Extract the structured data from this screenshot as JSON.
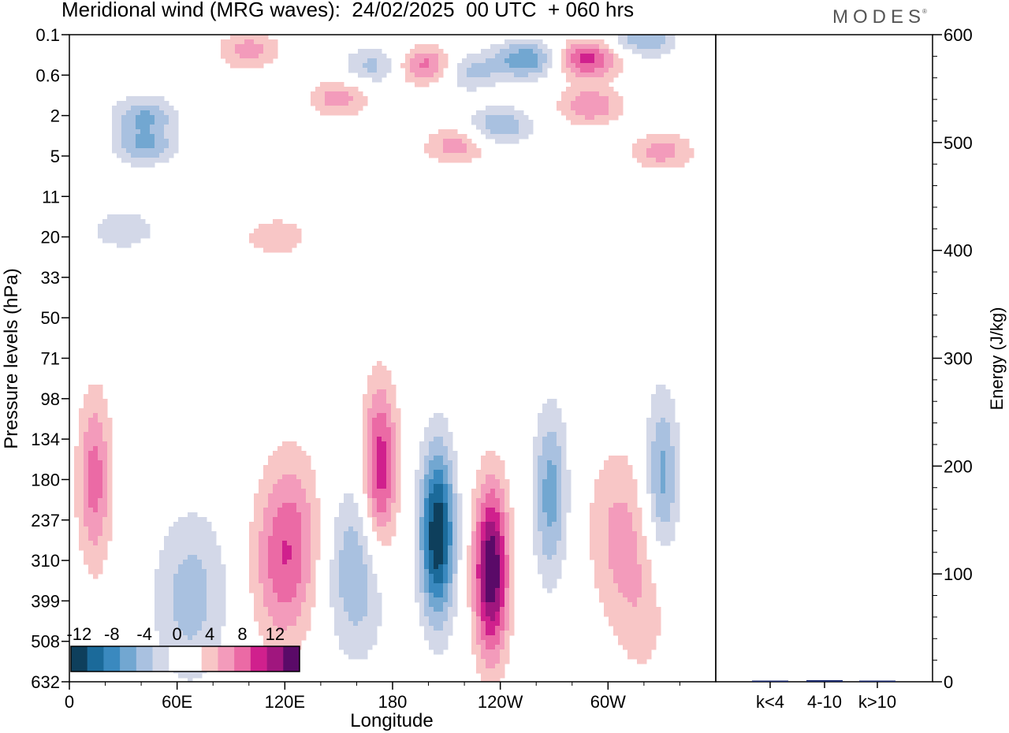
{
  "title": "Meridional wind (MRG waves):  24/02/2025  00 UTC  + 060 hrs",
  "brand": "MODES",
  "brand_mark": "®",
  "colors": {
    "neg": [
      "#0e3f5c",
      "#1b6a9a",
      "#3a89bf",
      "#72a7d1",
      "#a9c1e0",
      "#d3d8e8"
    ],
    "zero": "#ffffff",
    "pos": [
      "#f8c6c6",
      "#f39bbb",
      "#eb6aa5",
      "#d0208d",
      "#a0167e",
      "#5a0a68"
    ],
    "energy_bar": "#1c2b6e"
  },
  "chart_data": [
    {
      "type": "heatmap",
      "title": "Meridional wind (MRG waves):  24/02/2025  00 UTC  + 060 hrs",
      "xlabel": "Longitude",
      "ylabel": "Pressure levels (hPa)",
      "x_ticks": [
        "0",
        "60E",
        "120E",
        "180",
        "120W",
        "60W"
      ],
      "y_ticks": [
        "0.1",
        "0.6",
        "2",
        "5",
        "11",
        "20",
        "33",
        "50",
        "71",
        "98",
        "134",
        "180",
        "237",
        "310",
        "399",
        "508",
        "632"
      ],
      "colorbar": {
        "labels": [
          "-12",
          "-8",
          "-4",
          "0",
          "4",
          "8",
          "12"
        ],
        "levels": [
          -12,
          -10,
          -8,
          -6,
          -4,
          -2,
          0,
          2,
          4,
          6,
          8,
          10,
          12
        ]
      },
      "features": [
        {
          "lon": 205,
          "level": 260,
          "value": -14
        },
        {
          "lon": 235,
          "level": 330,
          "value": 14
        },
        {
          "lon": 173,
          "level": 170,
          "value": 10
        },
        {
          "lon": 268,
          "level": 200,
          "value": -7
        },
        {
          "lon": 330,
          "level": 180,
          "value": -7
        },
        {
          "lon": 14,
          "level": 180,
          "value": 7
        },
        {
          "lon": 255,
          "level": 0.3,
          "value": -8
        },
        {
          "lon": 288,
          "level": 0.3,
          "value": 9
        },
        {
          "lon": 200,
          "level": 0.4,
          "value": 8
        },
        {
          "lon": 42,
          "level": 4,
          "value": -6
        },
        {
          "lon": 42,
          "level": 2,
          "value": -6
        },
        {
          "lon": 150,
          "level": 1.2,
          "value": 5
        },
        {
          "lon": 240,
          "level": 2.5,
          "value": -6
        },
        {
          "lon": 290,
          "level": 1.5,
          "value": 6
        },
        {
          "lon": 170,
          "level": 0.4,
          "value": -5
        },
        {
          "lon": 220,
          "level": 0.5,
          "value": -6
        },
        {
          "lon": 320,
          "level": 0.12,
          "value": -6
        },
        {
          "lon": 100,
          "level": 0.2,
          "value": 5
        },
        {
          "lon": 30,
          "level": 18,
          "value": -4
        },
        {
          "lon": 115,
          "level": 20,
          "value": 4
        },
        {
          "lon": 118,
          "level": 330,
          "value": 5
        },
        {
          "lon": 125,
          "level": 250,
          "value": 4
        },
        {
          "lon": 160,
          "level": 330,
          "value": -6
        },
        {
          "lon": 60,
          "level": 400,
          "value": -3
        },
        {
          "lon": 75,
          "level": 380,
          "value": -3
        },
        {
          "lon": 305,
          "level": 250,
          "value": 4
        },
        {
          "lon": 320,
          "level": 400,
          "value": 3
        },
        {
          "lon": 215,
          "level": 4,
          "value": 5
        },
        {
          "lon": 330,
          "level": 4.5,
          "value": 5
        }
      ]
    },
    {
      "type": "bar",
      "ylabel": "Energy (J/kg)",
      "categories": [
        "k<4",
        "4-10",
        "k>10"
      ],
      "values": [
        0.5,
        1.5,
        0
      ],
      "ylim": [
        0,
        600
      ],
      "y_ticks": [
        "0",
        "100",
        "200",
        "300",
        "400",
        "500",
        "600"
      ]
    }
  ]
}
